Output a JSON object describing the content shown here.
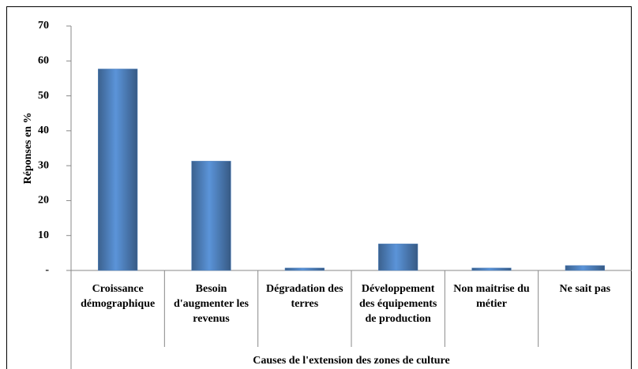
{
  "chart_data": {
    "type": "bar",
    "categories": [
      "Croissance démographique",
      "Besoin d'augmenter les revenus",
      "Dégradation des terres",
      "Développement des équipements de production",
      "Non maitrise du métier",
      "Ne sait pas"
    ],
    "values": [
      57.7,
      31.3,
      0.7,
      7.6,
      0.7,
      1.4
    ],
    "color": "#4f81bd",
    "ylim": [
      0,
      70
    ],
    "yticks": [
      {
        "value": 0,
        "label": "-"
      },
      10,
      20,
      30,
      40,
      50,
      60,
      70
    ],
    "ylabel": "Réponses en %",
    "xlabel": "Causes de l'extension des zones de culture",
    "grid": false
  }
}
